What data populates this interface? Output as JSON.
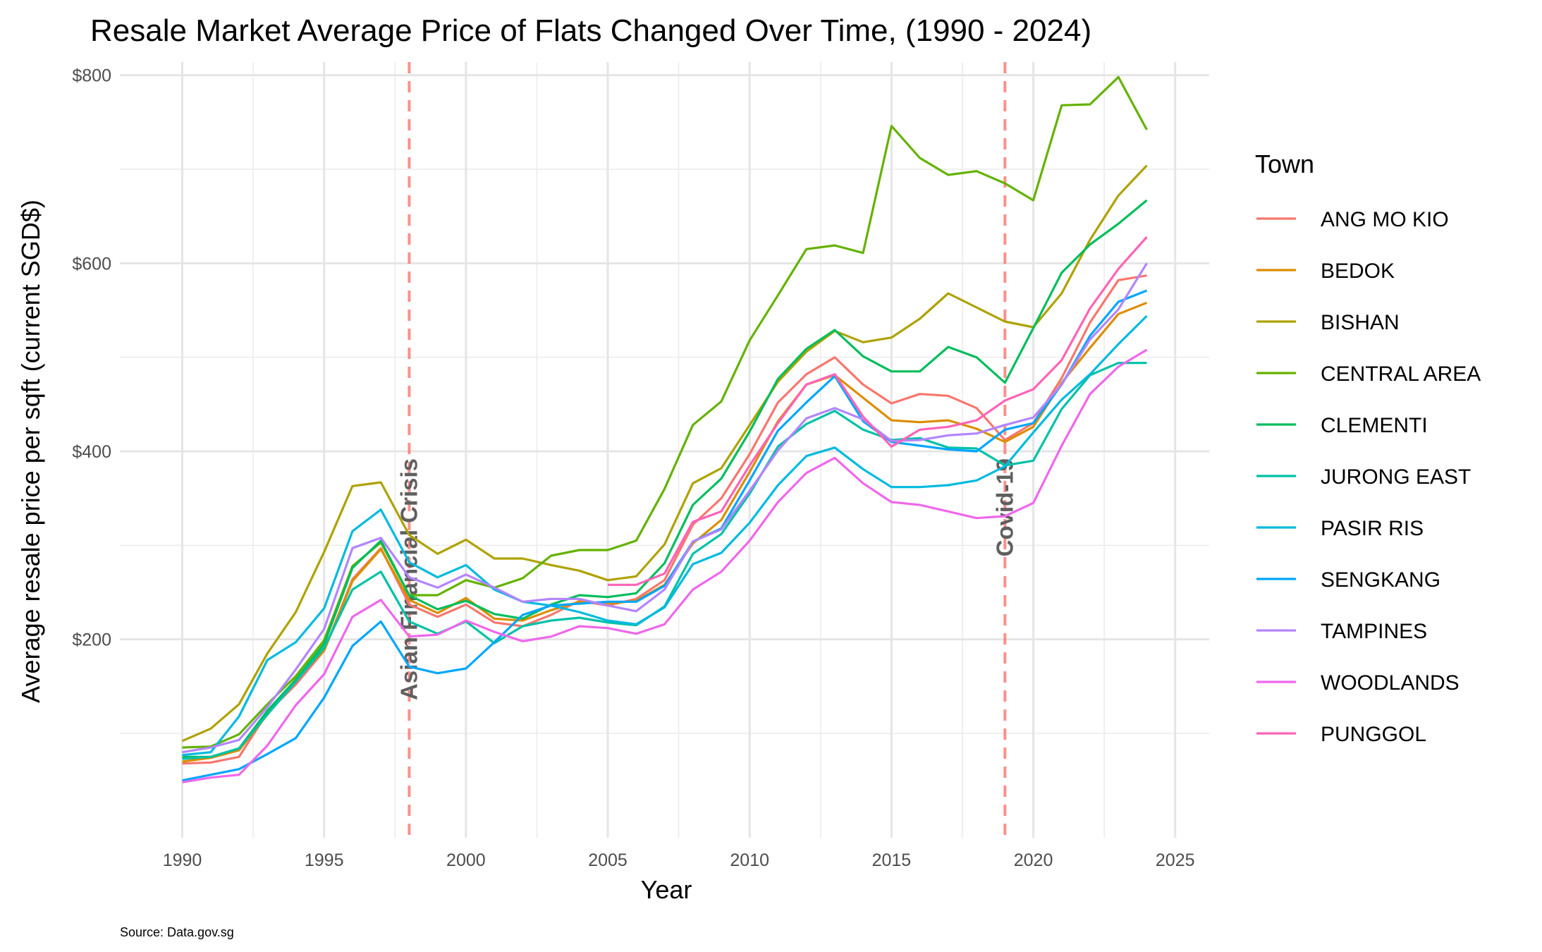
{
  "chart_data": {
    "type": "line",
    "title": "Resale Market Average Price of Flats Changed Over Time, (1990 - 2024)",
    "xlabel": "Year",
    "ylabel": "Average resale price per sqft (current SGD$)",
    "caption": "Source: Data.gov.sg",
    "xlim": [
      1987.8,
      2026.2
    ],
    "ylim": [
      -11,
      814
    ],
    "x_ticks": [
      1990,
      1995,
      2000,
      2005,
      2010,
      2015,
      2020,
      2025
    ],
    "x_tick_labels": [
      "1990",
      "1995",
      "2000",
      "2005",
      "2010",
      "2015",
      "2020",
      "2025"
    ],
    "y_ticks": [
      200,
      400,
      600,
      800
    ],
    "y_tick_labels": [
      "$200",
      "$400",
      "$600",
      "$800"
    ],
    "grid": true,
    "legend": {
      "title": "Town",
      "position": "right"
    },
    "annotations": [
      {
        "x": 1998,
        "label": "Asian Financial Crisis",
        "color": "#f8766d"
      },
      {
        "x": 2019,
        "label": "Covid-19",
        "color": "#f8766d"
      }
    ],
    "x": [
      1990,
      1991,
      1992,
      1993,
      1994,
      1995,
      1996,
      1997,
      1998,
      1999,
      2000,
      2001,
      2002,
      2003,
      2004,
      2005,
      2006,
      2007,
      2008,
      2009,
      2010,
      2011,
      2012,
      2013,
      2014,
      2015,
      2016,
      2017,
      2018,
      2019,
      2020,
      2021,
      2022,
      2023,
      2024
    ],
    "series": [
      {
        "name": "ANG MO KIO",
        "color": "#F8766D",
        "values": [
          68,
          69,
          75,
          122,
          152,
          188,
          264,
          297,
          237,
          224,
          237,
          218,
          214,
          226,
          241,
          236,
          243,
          263,
          322,
          350,
          397,
          452,
          482,
          500,
          471,
          451,
          461,
          459,
          446,
          412,
          430,
          478,
          537,
          582,
          587
        ]
      },
      {
        "name": "BEDOK",
        "color": "#DB8E00",
        "values": [
          70,
          74,
          82,
          120,
          158,
          188,
          262,
          296,
          242,
          228,
          244,
          222,
          220,
          231,
          240,
          238,
          241,
          258,
          302,
          327,
          378,
          432,
          471,
          481,
          457,
          433,
          431,
          433,
          424,
          410,
          426,
          473,
          510,
          546,
          558
        ]
      },
      {
        "name": "BISHAN",
        "color": "#AEA200",
        "values": [
          92,
          105,
          131,
          185,
          229,
          293,
          363,
          367,
          311,
          291,
          306,
          286,
          286,
          279,
          273,
          263,
          267,
          301,
          366,
          382,
          428,
          474,
          506,
          528,
          516,
          521,
          541,
          568,
          553,
          538,
          532,
          568,
          625,
          672,
          704
        ]
      },
      {
        "name": "CENTRAL AREA",
        "color": "#64B200",
        "values": [
          85,
          86,
          99,
          131,
          161,
          199,
          278,
          303,
          247,
          247,
          263,
          255,
          265,
          289,
          295,
          295,
          305,
          360,
          428,
          453,
          518,
          566,
          615,
          619,
          611,
          746,
          712,
          694,
          698,
          685,
          667,
          768,
          769,
          798,
          742
        ]
      },
      {
        "name": "CLEMENTI",
        "color": "#00BD5C",
        "values": [
          75,
          75,
          84,
          124,
          157,
          195,
          276,
          305,
          247,
          232,
          241,
          227,
          222,
          237,
          247,
          245,
          249,
          281,
          343,
          371,
          421,
          477,
          509,
          529,
          501,
          485,
          485,
          511,
          500,
          473,
          531,
          590,
          620,
          642,
          667
        ]
      },
      {
        "name": "JURONG EAST",
        "color": "#00C1A7",
        "values": [
          73,
          75,
          84,
          120,
          155,
          191,
          253,
          272,
          219,
          206,
          219,
          196,
          214,
          220,
          223,
          218,
          215,
          235,
          291,
          312,
          355,
          405,
          429,
          443,
          423,
          412,
          414,
          404,
          403,
          385,
          390,
          445,
          481,
          494,
          494
        ]
      },
      {
        "name": "PASIR RIS",
        "color": "#00BADE",
        "values": [
          77,
          80,
          118,
          178,
          197,
          233,
          315,
          338,
          282,
          266,
          279,
          253,
          240,
          236,
          229,
          220,
          216,
          234,
          280,
          292,
          324,
          364,
          395,
          404,
          381,
          362,
          362,
          364,
          369,
          384,
          420,
          455,
          482,
          514,
          544
        ]
      },
      {
        "name": "SENGKANG",
        "color": "#00A6FF",
        "values": [
          50,
          56,
          62,
          78,
          95,
          138,
          193,
          219,
          171,
          164,
          169,
          197,
          226,
          236,
          238,
          240,
          240,
          257,
          304,
          318,
          369,
          422,
          452,
          480,
          432,
          410,
          406,
          402,
          400,
          423,
          430,
          471,
          523,
          559,
          571
        ]
      },
      {
        "name": "TAMPINES",
        "color": "#B385FF",
        "values": [
          80,
          85,
          93,
          128,
          168,
          211,
          297,
          308,
          266,
          255,
          269,
          255,
          240,
          243,
          243,
          236,
          230,
          253,
          304,
          317,
          358,
          401,
          435,
          446,
          434,
          411,
          412,
          417,
          419,
          428,
          436,
          471,
          519,
          551,
          600
        ]
      },
      {
        "name": "WOODLANDS",
        "color": "#EF67EB",
        "values": [
          48,
          53,
          56,
          87,
          130,
          163,
          224,
          242,
          203,
          205,
          220,
          208,
          198,
          203,
          214,
          212,
          206,
          216,
          253,
          272,
          305,
          346,
          377,
          393,
          366,
          346,
          343,
          336,
          329,
          331,
          345,
          406,
          461,
          490,
          508
        ]
      },
      {
        "name": "PUNGGOL",
        "color": "#FF63B6",
        "values": [
          null,
          null,
          null,
          null,
          null,
          null,
          null,
          null,
          null,
          null,
          null,
          null,
          null,
          null,
          null,
          258,
          258,
          270,
          325,
          336,
          385,
          430,
          471,
          482,
          437,
          405,
          423,
          426,
          433,
          454,
          466,
          497,
          552,
          594,
          628
        ]
      }
    ]
  }
}
